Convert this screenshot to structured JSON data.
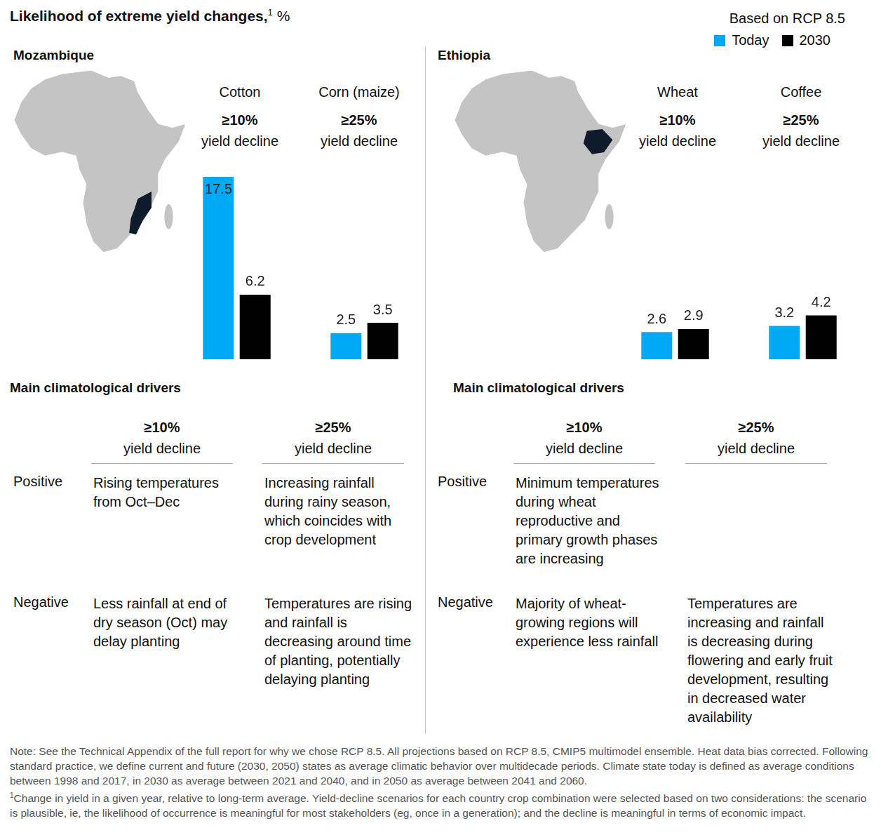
{
  "title": "Likelihood of extreme yield changes,",
  "title_note_marker": "1",
  "title_unit": "%",
  "scenario": "Based on RCP 8.5",
  "chart_data": [
    {
      "type": "bar",
      "title": "Cotton",
      "threshold": "≥10%",
      "subtitle": "yield decline",
      "categories": [
        null
      ],
      "series": [
        {
          "name": "Today",
          "color": "#00a9f4",
          "values": [
            17.5
          ]
        },
        {
          "name": "2030",
          "color": "#000000",
          "values": [
            6.2
          ]
        }
      ],
      "ylim": [
        0,
        17.5
      ],
      "tick_labels": false,
      "grid": false,
      "data_labels": true,
      "legend": "top-right"
    },
    {
      "type": "bar",
      "title": "Corn (maize)",
      "threshold": "≥25%",
      "subtitle": "yield decline",
      "categories": [
        null
      ],
      "series": [
        {
          "name": "Today",
          "color": "#00a9f4",
          "values": [
            2.5
          ]
        },
        {
          "name": "2030",
          "color": "#000000",
          "values": [
            3.5
          ]
        }
      ],
      "ylim": [
        0,
        17.5
      ],
      "tick_labels": false,
      "grid": false,
      "data_labels": true
    },
    {
      "type": "bar",
      "title": "Wheat",
      "threshold": "≥10%",
      "subtitle": "yield decline",
      "categories": [
        null
      ],
      "series": [
        {
          "name": "Today",
          "color": "#00a9f4",
          "values": [
            2.6
          ]
        },
        {
          "name": "2030",
          "color": "#000000",
          "values": [
            2.9
          ]
        }
      ],
      "ylim": [
        0,
        17.5
      ],
      "tick_labels": false,
      "grid": false,
      "data_labels": true
    },
    {
      "type": "bar",
      "title": "Coffee",
      "threshold": "≥25%",
      "subtitle": "yield decline",
      "categories": [
        null
      ],
      "series": [
        {
          "name": "Today",
          "color": "#00a9f4",
          "values": [
            3.2
          ]
        },
        {
          "name": "2030",
          "color": "#000000",
          "values": [
            4.2
          ]
        }
      ],
      "ylim": [
        0,
        17.5
      ],
      "tick_labels": false,
      "grid": false,
      "data_labels": true
    }
  ],
  "panels": [
    {
      "country": "Mozambique",
      "drivers_heading": "Main climatological drivers",
      "columns": [
        {
          "threshold": "≥10%",
          "subtitle": "yield decline"
        },
        {
          "threshold": "≥25%",
          "subtitle": "yield decline"
        }
      ],
      "rows": [
        {
          "label": "Positive",
          "cells": [
            "Rising temperatures from Oct–Dec",
            "Increasing rainfall during rainy season, which coincides with crop development"
          ]
        },
        {
          "label": "Negative",
          "cells": [
            "Less rainfall at end of dry season (Oct) may delay planting",
            "Temperatures are rising and rainfall is decreasing around time of planting, potentially delaying planting"
          ]
        }
      ]
    },
    {
      "country": "Ethiopia",
      "drivers_heading": "Main climatological drivers",
      "columns": [
        {
          "threshold": "≥10%",
          "subtitle": "yield decline"
        },
        {
          "threshold": "≥25%",
          "subtitle": "yield decline"
        }
      ],
      "rows": [
        {
          "label": "Positive",
          "cells": [
            "Minimum temperatures during wheat reproductive and primary growth phases are increasing",
            null
          ]
        },
        {
          "label": "Negative",
          "cells": [
            "Majority of wheat-growing regions will experience less rainfall",
            "Temperatures are increasing and rainfall is decreasing during flowering and early fruit development, resulting in decreased water availability"
          ]
        }
      ]
    }
  ],
  "note": "Note: See the Technical Appendix of the full report for why we chose RCP 8.5. All projections based on RCP 8.5, CMIP5 multimodel ensemble. Heat data bias corrected. Following standard practice, we define current and future (2030, 2050) states as average climatic behavior over multidecade periods. Climate state today is defined as average conditions between 1998 and 2017, in 2030 as average between 2021 and 2040, and in 2050 as average between 2041 and 2060.",
  "footnote_marker": "1",
  "footnote": "Change in yield in a given year, relative to long-term average. Yield-decline scenarios for each country crop combination were selected based on two considerations: the scenario is plausible, ie, the likelihood of occurrence is meaningful for most stakeholders (eg, once in a generation); and the decline is meaningful in terms of economic impact."
}
